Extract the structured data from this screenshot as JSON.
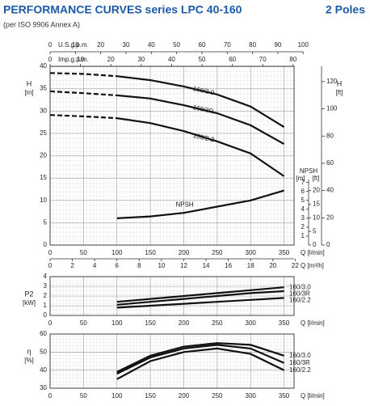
{
  "header": {
    "title": "PERFORMANCE CURVES series LPC 40-160",
    "poles": "2 Poles",
    "note": "(per ISO 9906 Annex A)"
  },
  "chart_data": [
    {
      "type": "line",
      "y_label": "H",
      "y_unit": "[m]",
      "y2_label": "H",
      "y2_unit": "[ft]",
      "x_label": "Q [l/min]",
      "xlim": [
        0,
        365
      ],
      "xticks": [
        0,
        50,
        100,
        150,
        200,
        250,
        300,
        350
      ],
      "ylim": [
        0,
        40
      ],
      "yticks": [
        0,
        5,
        10,
        15,
        20,
        25,
        30,
        35,
        40
      ],
      "y2lim": [
        0,
        131.2
      ],
      "y2ticks": [
        0,
        20,
        40,
        60,
        80,
        100,
        120
      ],
      "top_axes": [
        {
          "label": "U.S.g.p.m.",
          "lim": [
            0,
            96.4
          ],
          "ticks": [
            0,
            10,
            20,
            30,
            40,
            50,
            60,
            70,
            80,
            90,
            100
          ]
        },
        {
          "label": "Imp.g.p.m.",
          "lim": [
            0,
            80.3
          ],
          "ticks": [
            0,
            10,
            20,
            30,
            40,
            50,
            60,
            70,
            80
          ]
        }
      ],
      "bottom_axis": {
        "label": "Q [m³/h]",
        "lim": [
          0,
          21.9
        ],
        "ticks": [
          0,
          2,
          4,
          6,
          8,
          10,
          12,
          14,
          16,
          18,
          20,
          22
        ]
      },
      "grid": true,
      "solid_from": 100,
      "x": [
        0,
        50,
        100,
        150,
        200,
        250,
        300,
        350
      ],
      "series": [
        {
          "name": "160/3.0",
          "color": "#111111",
          "values": [
            38.5,
            38.3,
            37.8,
            36.9,
            35.5,
            33.7,
            31.0,
            26.4
          ]
        },
        {
          "name": "160/3R",
          "color": "#111111",
          "values": [
            34.4,
            34.0,
            33.5,
            32.8,
            31.3,
            29.5,
            26.8,
            22.6
          ]
        },
        {
          "name": "160/2.2",
          "color": "#111111",
          "values": [
            29.1,
            28.8,
            28.4,
            27.3,
            25.5,
            23.2,
            20.5,
            15.4
          ]
        }
      ],
      "npsh": {
        "name": "NPSH",
        "unit": "[m]",
        "unit2": "[ft]",
        "color": "#111111",
        "lim": [
          0,
          20
        ],
        "ticks": [
          1,
          2,
          3,
          4,
          5,
          6,
          7
        ],
        "ft_lim": [
          0,
          65.6
        ],
        "ft_ticks": [
          0,
          5,
          10,
          15,
          20
        ],
        "x": [
          100,
          150,
          200,
          250,
          300,
          350
        ],
        "values": [
          3.0,
          3.2,
          3.6,
          4.3,
          5.0,
          6.1
        ]
      }
    },
    {
      "type": "line",
      "y_label": "P2",
      "y_unit": "[kW]",
      "x_label": "Q [l/min]",
      "xlim": [
        0,
        365
      ],
      "xticks": [
        0,
        50,
        100,
        150,
        200,
        250,
        300,
        350
      ],
      "ylim": [
        0,
        4
      ],
      "yticks": [
        0,
        1,
        2,
        3,
        4
      ],
      "grid": true,
      "x": [
        100,
        150,
        200,
        250,
        300,
        350
      ],
      "series": [
        {
          "name": "160/3.0",
          "color": "#111111",
          "values": [
            1.4,
            1.7,
            2.0,
            2.3,
            2.6,
            2.9
          ]
        },
        {
          "name": "160/3R",
          "color": "#111111",
          "values": [
            1.1,
            1.4,
            1.7,
            2.0,
            2.3,
            2.5
          ]
        },
        {
          "name": "160/2.2",
          "color": "#111111",
          "values": [
            0.8,
            1.0,
            1.2,
            1.4,
            1.6,
            1.8
          ]
        }
      ]
    },
    {
      "type": "line",
      "y_label": "η",
      "y_unit": "[%]",
      "x_label": "Q [l/min]",
      "xlim": [
        0,
        365
      ],
      "xticks": [
        0,
        50,
        100,
        150,
        200,
        250,
        300,
        350
      ],
      "ylim": [
        30,
        60
      ],
      "yticks": [
        30,
        40,
        50,
        60
      ],
      "grid": true,
      "x": [
        100,
        150,
        200,
        250,
        300,
        350
      ],
      "series": [
        {
          "name": "160/3.0",
          "color": "#111111",
          "values": [
            39,
            48,
            53,
            55,
            54,
            48
          ]
        },
        {
          "name": "160/3R",
          "color": "#111111",
          "values": [
            38,
            47,
            52,
            54,
            52,
            44
          ]
        },
        {
          "name": "160/2.2",
          "color": "#111111",
          "values": [
            35,
            45,
            50,
            52,
            49,
            40
          ]
        }
      ]
    }
  ]
}
